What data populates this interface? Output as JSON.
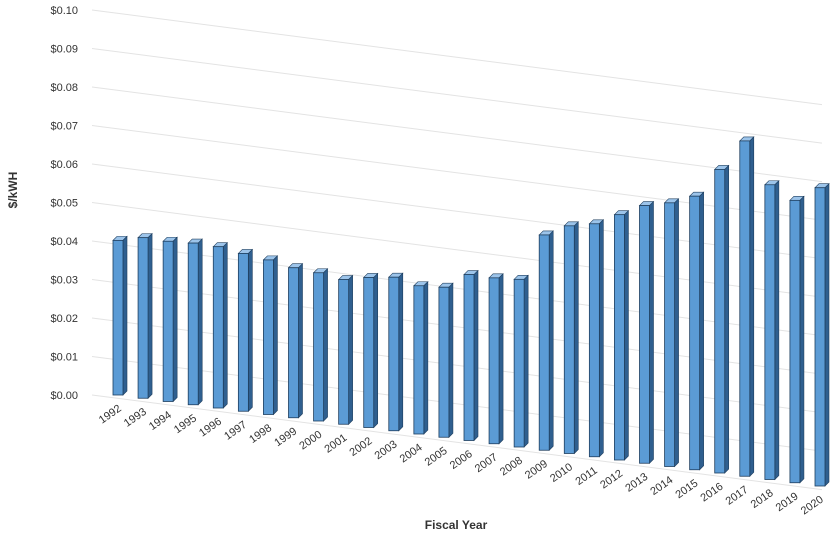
{
  "chart_data": {
    "type": "bar",
    "title": "",
    "xlabel": "Fiscal Year",
    "ylabel": "$/kWH",
    "ylim": [
      0,
      0.1
    ],
    "y_ticks": [
      "$0.00",
      "$0.01",
      "$0.02",
      "$0.03",
      "$0.04",
      "$0.05",
      "$0.06",
      "$0.07",
      "$0.08",
      "$0.09",
      "$0.10"
    ],
    "grid": true,
    "legend": "none",
    "categories": [
      "1992",
      "1993",
      "1994",
      "1995",
      "1996",
      "1997",
      "1998",
      "1999",
      "2000",
      "2001",
      "2002",
      "2003",
      "2004",
      "2005",
      "2006",
      "2007",
      "2008",
      "2009",
      "2010",
      "2011",
      "2012",
      "2013",
      "2014",
      "2015",
      "2016",
      "2017",
      "2018",
      "2019",
      "2020"
    ],
    "values": [
      0.0438,
      0.0455,
      0.0454,
      0.0458,
      0.0457,
      0.0447,
      0.0438,
      0.0425,
      0.042,
      0.041,
      0.0425,
      0.0435,
      0.042,
      0.0425,
      0.047,
      0.047,
      0.0475,
      0.061,
      0.0645,
      0.066,
      0.0695,
      0.073,
      0.0747,
      0.0775,
      0.086,
      0.095,
      0.0835,
      0.08,
      0.0845
    ],
    "colors": {
      "bar_front": "#5b9bd5",
      "bar_side": "#2f5f8f",
      "bar_top": "#9cc4ea",
      "grid": "#e3e3e3"
    }
  }
}
